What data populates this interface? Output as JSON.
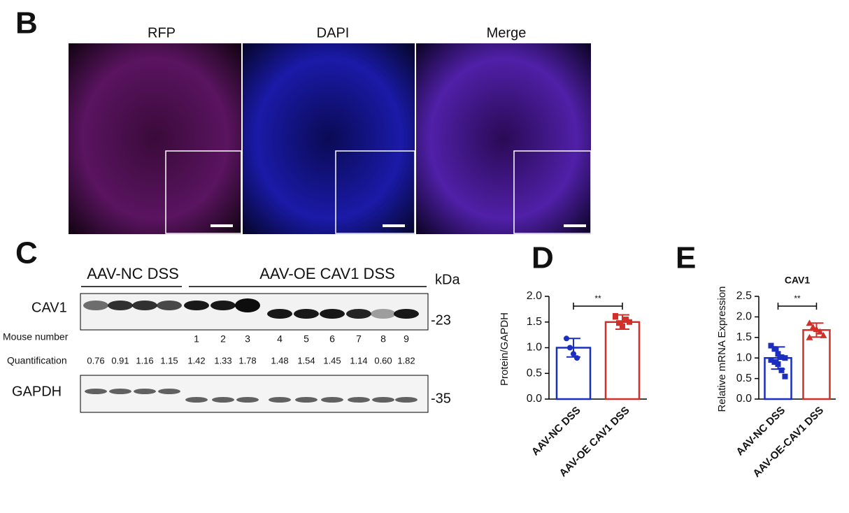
{
  "panel_b": {
    "letter": "B",
    "titles": [
      "RFP",
      "DAPI",
      "Merge"
    ]
  },
  "panel_c": {
    "letter": "C",
    "group_labels": [
      "AAV-NC DSS",
      "AAV-OE CAV1 DSS"
    ],
    "unit": "kDa",
    "blots": [
      {
        "name": "CAV1",
        "marker": "-23"
      },
      {
        "name": "GAPDH",
        "marker": "-35"
      }
    ],
    "mouse_label": "Mouse number",
    "mouse_numbers": [
      1,
      2,
      3,
      4,
      5,
      6,
      7,
      8,
      9
    ],
    "quant_label": "Quantification",
    "quantification": [
      "0.76",
      "0.91",
      "1.16",
      "1.15",
      "1.42",
      "1.33",
      "1.78",
      "1.48",
      "1.54",
      "1.45",
      "1.14",
      "0.60",
      "1.82"
    ]
  },
  "chart_data": [
    {
      "type": "bar",
      "letter": "D",
      "ylabel": "Protein/GAPDH",
      "categories": [
        "AAV-NC DSS",
        "AAV-OE CAV1 DSS"
      ],
      "series": [
        {
          "color": "#1a2ec0",
          "values": [
            1.0,
            1.5
          ],
          "errors": [
            0.18,
            0.14
          ],
          "markers": "circle",
          "points": [
            1.18,
            1.0,
            0.88,
            0.8
          ]
        },
        {
          "color": "#d12f2a",
          "values": [
            1.0,
            1.5
          ],
          "errors": [
            0.18,
            0.14
          ],
          "markers": "square",
          "points": [
            1.6,
            1.48,
            1.42,
            1.55,
            1.5,
            1.62
          ]
        }
      ],
      "significance": "**",
      "ylim": [
        0,
        2.0
      ],
      "yticks": [
        {
          "value": 0,
          "label": "0.0"
        },
        0.5,
        {
          "value": 1,
          "label": "1.0"
        },
        1.5,
        {
          "value": 2,
          "label": "2.0"
        }
      ]
    },
    {
      "type": "bar",
      "letter": "E",
      "title": "CAV1",
      "ylabel": "Relative mRNA Expression",
      "categories": [
        "AAV-NC DSS",
        "AAV-OE-CAV1 DSS"
      ],
      "series": [
        {
          "color": "#1a2ec0",
          "values": [
            1.0,
            1.68
          ],
          "errors": [
            0.27,
            0.17
          ],
          "markers": "square",
          "points": [
            1.3,
            1.22,
            1.1,
            1.02,
            1.0,
            0.95,
            0.9,
            0.85,
            0.7,
            0.55
          ]
        },
        {
          "color": "#d12f2a",
          "values": [
            1.0,
            1.68
          ],
          "errors": [
            0.27,
            0.17
          ],
          "markers": "triangle",
          "points": [
            1.85,
            1.75,
            1.7,
            1.64,
            1.55,
            1.5
          ]
        }
      ],
      "significance": "**",
      "ylim": [
        0,
        2.5
      ],
      "yticks": [
        {
          "value": 0,
          "label": "0.0"
        },
        0.5,
        {
          "value": 1,
          "label": "1.0"
        },
        1.5,
        {
          "value": 2,
          "label": "2.0"
        },
        2.5
      ]
    }
  ]
}
